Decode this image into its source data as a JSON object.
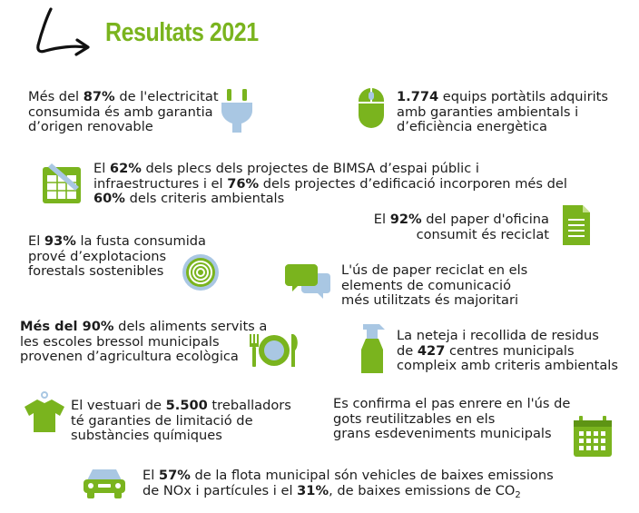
{
  "page": {
    "title": "Resultats 2021"
  },
  "items": [
    {
      "id": "electricity",
      "icon": "plug-icon",
      "lines": [
        [
          "Més del ",
          {
            "b": "87%"
          },
          " de l'electricitat"
        ],
        [
          "consumida és amb garantia"
        ],
        [
          "d’origen renovable"
        ]
      ]
    },
    {
      "id": "laptops",
      "icon": "mouse-icon",
      "lines": [
        [
          {
            "b": "1.774"
          },
          " equips portàtils adquirits"
        ],
        [
          "amb garanties ambientals i"
        ],
        [
          "d’eficiència energètica"
        ]
      ]
    },
    {
      "id": "tenders",
      "icon": "document-spreadsheet-icon",
      "lines": [
        [
          "El ",
          {
            "b": "62%"
          },
          " dels plecs dels projectes de BIMSA d’espai públic i"
        ],
        [
          "infraestructures i el ",
          {
            "b": "76%"
          },
          " dels projectes d’edificació incorporen més del"
        ],
        [
          {
            "b": "60%"
          },
          " dels criteris ambientals"
        ]
      ]
    },
    {
      "id": "paper",
      "icon": "paper-document-icon",
      "lines": [
        [
          "El ",
          {
            "b": "92%"
          },
          " del paper d'oficina"
        ],
        [
          "consumit és reciclat"
        ]
      ]
    },
    {
      "id": "wood",
      "icon": "tree-rings-icon",
      "lines": [
        [
          "El ",
          {
            "b": "93%"
          },
          " la fusta consumida"
        ],
        [
          "prové d’explotacions"
        ],
        [
          "forestals sostenibles"
        ]
      ]
    },
    {
      "id": "communication",
      "icon": "speech-bubbles-icon",
      "lines": [
        [
          "L'ús de paper reciclat en els"
        ],
        [
          "elements de comunicació"
        ],
        [
          "més utilitzats és majoritari"
        ]
      ]
    },
    {
      "id": "food",
      "icon": "plate-cutlery-icon",
      "lines": [
        [
          {
            "b": "Més del 90%"
          },
          " dels aliments servits a"
        ],
        [
          "les escoles bressol municipals"
        ],
        [
          "provenen d’agricultura ecològica"
        ]
      ]
    },
    {
      "id": "cleaning",
      "icon": "spray-bottle-icon",
      "lines": [
        [
          "La neteja i recollida de residus"
        ],
        [
          "de ",
          {
            "b": "427"
          },
          " centres municipals"
        ],
        [
          "compleix amb criteris ambientals"
        ]
      ]
    },
    {
      "id": "clothing",
      "icon": "tshirt-icon",
      "lines": [
        [
          "El vestuari de ",
          {
            "b": "5.500"
          },
          " treballadors"
        ],
        [
          "té garanties de limitació de"
        ],
        [
          "substàncies químiques"
        ]
      ]
    },
    {
      "id": "cups",
      "icon": "calendar-icon",
      "lines": [
        [
          "Es confirma el pas enrere en l'ús de"
        ],
        [
          "gots reutilitzables en els"
        ],
        [
          "grans esdeveniments municipals"
        ]
      ]
    },
    {
      "id": "fleet",
      "icon": "car-icon",
      "lines": [
        [
          "El ",
          {
            "b": "57%"
          },
          " de la flota municipal són vehicles de baixes emissions"
        ],
        [
          "de NOx i partícules i el ",
          {
            "b": "31%"
          },
          ", de baixes emissions de CO",
          {
            "sub": "2"
          }
        ]
      ]
    }
  ],
  "colors": {
    "accent": "#7ab41e",
    "icon_blue": "#a9c7e3",
    "text": "#1c1c1c"
  }
}
